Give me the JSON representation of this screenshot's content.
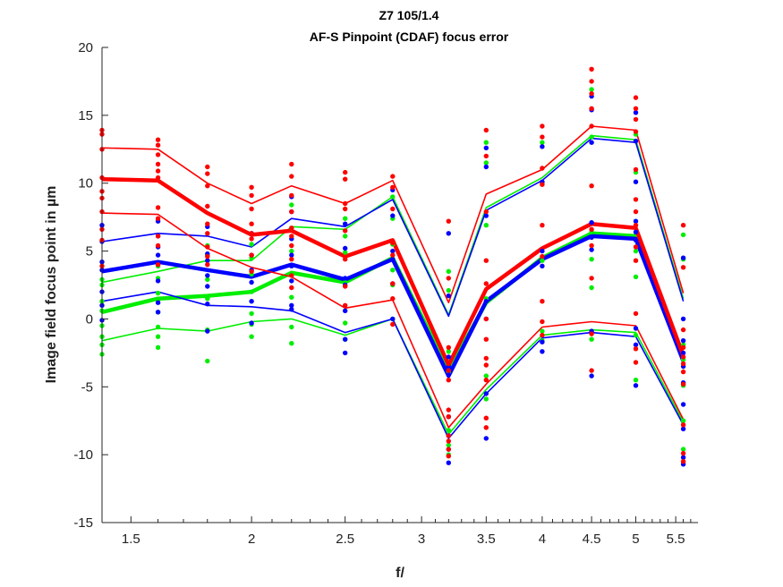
{
  "chart_data": {
    "type": "line",
    "title": "Z7 105/1.4",
    "subtitle": "AF-S Pinpoint (CDAF) focus error",
    "xlabel": "f/",
    "ylabel": "Image field focus point in µm",
    "xscale": "log",
    "xlim": [
      1.4,
      5.8
    ],
    "ylim": [
      -15,
      20
    ],
    "x_ticks": [
      "1.5",
      "2",
      "2.5",
      "3",
      "3.5",
      "4",
      "4.5",
      "5",
      "5.5"
    ],
    "y_ticks": [
      "-15",
      "-10",
      "-5",
      "0",
      "5",
      "10",
      "15",
      "20"
    ],
    "grid": false,
    "legend": "none",
    "x": [
      1.4,
      1.6,
      1.8,
      2.0,
      2.2,
      2.5,
      2.8,
      3.2,
      3.5,
      4.0,
      4.5,
      5.0,
      5.6
    ],
    "series": [
      {
        "color": "#ff0000",
        "style": "mean",
        "values": [
          10.3,
          10.2,
          7.8,
          6.2,
          6.5,
          4.6,
          5.8,
          -3.4,
          2.2,
          5.2,
          7.0,
          6.7,
          -2.7
        ]
      },
      {
        "color": "#ff0000",
        "style": "band",
        "values": [
          12.6,
          12.5,
          10.0,
          8.5,
          9.8,
          8.5,
          10.2,
          1.2,
          9.2,
          11.0,
          14.2,
          13.9,
          1.9
        ]
      },
      {
        "color": "#ff0000",
        "style": "band",
        "values": [
          7.8,
          7.7,
          5.2,
          3.8,
          3.1,
          0.8,
          1.4,
          -8.0,
          -4.8,
          -0.6,
          -0.2,
          -0.5,
          -7.4
        ]
      },
      {
        "color": "#0000ff",
        "style": "mean",
        "values": [
          3.5,
          4.2,
          3.6,
          3.1,
          4.0,
          2.9,
          4.4,
          -4.2,
          1.3,
          4.4,
          6.1,
          5.9,
          -3.1
        ]
      },
      {
        "color": "#0000ff",
        "style": "band",
        "values": [
          5.7,
          6.3,
          6.1,
          5.3,
          7.4,
          6.8,
          8.8,
          0.2,
          8.0,
          10.2,
          13.3,
          13.0,
          1.3
        ]
      },
      {
        "color": "#0000ff",
        "style": "band",
        "values": [
          1.3,
          2.0,
          1.0,
          0.9,
          0.6,
          -1.0,
          0.0,
          -8.8,
          -5.5,
          -1.4,
          -1.0,
          -1.3,
          -7.8
        ]
      },
      {
        "color": "#00ee00",
        "style": "mean",
        "values": [
          0.5,
          1.5,
          1.7,
          2.0,
          3.4,
          2.7,
          4.5,
          -3.8,
          1.2,
          4.5,
          6.3,
          6.1,
          -3.0
        ]
      },
      {
        "color": "#00ee00",
        "style": "band",
        "values": [
          2.7,
          3.5,
          4.3,
          4.3,
          6.8,
          6.6,
          9.0,
          0.3,
          8.2,
          10.4,
          13.5,
          13.2,
          1.5
        ]
      },
      {
        "color": "#00ee00",
        "style": "band",
        "values": [
          -1.6,
          -0.7,
          -0.9,
          -0.2,
          0.0,
          -1.2,
          0.0,
          -8.5,
          -5.2,
          -1.2,
          -0.8,
          -1.0,
          -7.6
        ]
      }
    ],
    "scatter": [
      {
        "color": "#ff0000",
        "x": 1.4,
        "values": [
          13.9,
          13.6,
          12.5,
          10.4,
          9.4,
          8.9,
          7.9,
          6.6,
          5.8,
          3.9
        ]
      },
      {
        "color": "#ff0000",
        "x": 1.6,
        "values": [
          13.2,
          12.8,
          12.1,
          11.4,
          10.9,
          10.4,
          8.2,
          7.4,
          6.1,
          5.4,
          4.0
        ]
      },
      {
        "color": "#ff0000",
        "x": 1.8,
        "values": [
          11.2,
          10.7,
          9.8,
          8.3,
          7.0,
          6.3,
          5.3,
          4.6,
          4.0
        ]
      },
      {
        "color": "#ff0000",
        "x": 2.0,
        "values": [
          9.7,
          9.1,
          8.1,
          7.0,
          6.3,
          5.9,
          4.7,
          3.5
        ]
      },
      {
        "color": "#ff0000",
        "x": 2.2,
        "values": [
          11.4,
          10.5,
          9.1,
          7.9,
          6.7,
          6.1,
          5.4,
          4.4,
          3.2,
          2.3
        ]
      },
      {
        "color": "#ff0000",
        "x": 2.5,
        "values": [
          10.8,
          10.3,
          8.5,
          8.1,
          6.5,
          4.4,
          2.4,
          1.0
        ]
      },
      {
        "color": "#ff0000",
        "x": 2.8,
        "values": [
          10.5,
          9.7,
          8.1,
          5.6,
          4.7,
          2.6,
          1.5,
          -0.4
        ]
      },
      {
        "color": "#ff0000",
        "x": 3.2,
        "values": [
          7.2,
          3.0,
          -2.1,
          -3.3,
          -3.8,
          -4.5,
          -6.7,
          -7.2,
          -8.6,
          -9.0,
          -9.6,
          -10.1
        ]
      },
      {
        "color": "#ff0000",
        "x": 3.5,
        "values": [
          13.9,
          12.0,
          7.9,
          4.3,
          2.6,
          0.0,
          -1.5,
          -2.9,
          -3.4,
          -4.5,
          -7.3,
          -8.0
        ]
      },
      {
        "color": "#ff0000",
        "x": 4.0,
        "values": [
          14.2,
          13.4,
          11.1,
          9.9,
          6.9,
          4.6,
          1.3,
          -0.2,
          -1.2
        ]
      },
      {
        "color": "#ff0000",
        "x": 4.5,
        "values": [
          18.4,
          17.5,
          16.6,
          15.5,
          14.2,
          9.8,
          6.6,
          5.4,
          3.0,
          -1.1,
          -3.8
        ]
      },
      {
        "color": "#ff0000",
        "x": 5.0,
        "values": [
          16.3,
          15.5,
          14.7,
          13.8,
          11.0,
          8.8,
          7.9,
          6.9,
          5.3,
          4.3,
          0.4,
          -2.2,
          -3.2
        ]
      },
      {
        "color": "#ff0000",
        "x": 5.6,
        "values": [
          6.9,
          3.8,
          -0.8,
          -2.1,
          -2.8,
          -3.3,
          -3.9,
          -4.8,
          -7.8,
          -9.9,
          -10.5
        ]
      },
      {
        "color": "#0000ff",
        "x": 1.4,
        "values": [
          6.9,
          5.7,
          4.2,
          3.6,
          2.0,
          1.0,
          -0.1
        ]
      },
      {
        "color": "#0000ff",
        "x": 1.6,
        "values": [
          7.2,
          6.1,
          5.3,
          4.7,
          2.8,
          1.2,
          0.5
        ]
      },
      {
        "color": "#0000ff",
        "x": 1.8,
        "values": [
          6.8,
          4.8,
          4.3,
          3.2,
          2.4,
          1.1,
          -0.9
        ]
      },
      {
        "color": "#0000ff",
        "x": 2.0,
        "values": [
          6.3,
          4.7,
          3.6,
          2.7,
          1.3,
          -0.3
        ]
      },
      {
        "color": "#0000ff",
        "x": 2.2,
        "values": [
          9.0,
          7.9,
          5.9,
          4.7,
          3.9,
          2.8,
          1.0,
          0.7
        ]
      },
      {
        "color": "#0000ff",
        "x": 2.5,
        "values": [
          7.0,
          5.2,
          3.0,
          2.5,
          0.6,
          -1.5,
          -2.5
        ]
      },
      {
        "color": "#0000ff",
        "x": 2.8,
        "values": [
          9.5,
          7.6,
          5.0,
          4.4,
          2.6,
          0.0
        ]
      },
      {
        "color": "#0000ff",
        "x": 3.2,
        "values": [
          6.3,
          1.7,
          -2.8,
          -3.5,
          -4.1,
          -7.2,
          -8.6,
          -9.6,
          -10.6
        ]
      },
      {
        "color": "#0000ff",
        "x": 3.5,
        "values": [
          12.6,
          11.2,
          7.6,
          1.3,
          0.0,
          -5.5,
          -8.8
        ]
      },
      {
        "color": "#0000ff",
        "x": 4.0,
        "values": [
          12.7,
          10.1,
          5.0,
          3.9,
          -1.7,
          -2.4
        ]
      },
      {
        "color": "#0000ff",
        "x": 4.5,
        "values": [
          16.4,
          15.4,
          13.0,
          7.1,
          6.0,
          5.1,
          -0.9,
          -4.2
        ]
      },
      {
        "color": "#0000ff",
        "x": 5.0,
        "values": [
          15.2,
          13.1,
          10.1,
          7.2,
          6.4,
          5.8,
          -0.7,
          -1.9,
          -4.9
        ]
      },
      {
        "color": "#0000ff",
        "x": 5.6,
        "values": [
          4.5,
          0.0,
          -1.6,
          -2.5,
          -3.5,
          -4.7,
          -6.3,
          -8.1,
          -10.2,
          -10.7
        ]
      },
      {
        "color": "#00ee00",
        "x": 1.4,
        "values": [
          2.9,
          2.5,
          1.3,
          0.6,
          -0.5,
          -1.3,
          -1.9,
          -2.6
        ]
      },
      {
        "color": "#00ee00",
        "x": 1.6,
        "values": [
          3.9,
          3.0,
          1.9,
          1.4,
          0.5,
          -0.6,
          -1.3,
          -2.1
        ]
      },
      {
        "color": "#00ee00",
        "x": 1.8,
        "values": [
          5.4,
          4.7,
          2.9,
          1.5,
          -0.8,
          -3.1
        ]
      },
      {
        "color": "#00ee00",
        "x": 2.0,
        "values": [
          5.5,
          4.5,
          3.3,
          2.0,
          0.4,
          -0.4,
          -1.3
        ]
      },
      {
        "color": "#00ee00",
        "x": 2.2,
        "values": [
          8.4,
          6.7,
          5.0,
          3.2,
          1.6,
          -0.6,
          -1.8
        ]
      },
      {
        "color": "#00ee00",
        "x": 2.5,
        "values": [
          7.4,
          6.1,
          4.9,
          2.7,
          -0.3,
          -1.5
        ]
      },
      {
        "color": "#00ee00",
        "x": 2.8,
        "values": [
          9.0,
          7.4,
          5.5,
          3.6,
          2.5,
          0.0
        ]
      },
      {
        "color": "#00ee00",
        "x": 3.2,
        "values": [
          3.5,
          2.1,
          -2.4,
          -3.9,
          -8.2,
          -9.3,
          -10.0
        ]
      },
      {
        "color": "#00ee00",
        "x": 3.5,
        "values": [
          13.0,
          11.5,
          6.9,
          1.5,
          -4.2,
          -5.9
        ]
      },
      {
        "color": "#00ee00",
        "x": 4.0,
        "values": [
          13.0,
          10.0,
          4.3,
          -0.9,
          -1.6
        ]
      },
      {
        "color": "#00ee00",
        "x": 4.5,
        "values": [
          16.9,
          13.4,
          6.4,
          4.4,
          2.3,
          -1.5
        ]
      },
      {
        "color": "#00ee00",
        "x": 5.0,
        "values": [
          13.6,
          10.8,
          5.0,
          3.1,
          -1.2,
          -4.5
        ]
      },
      {
        "color": "#00ee00",
        "x": 5.6,
        "values": [
          6.2,
          4.4,
          -1.9,
          -3.0,
          -4.9,
          -7.5,
          -9.6
        ]
      }
    ]
  }
}
